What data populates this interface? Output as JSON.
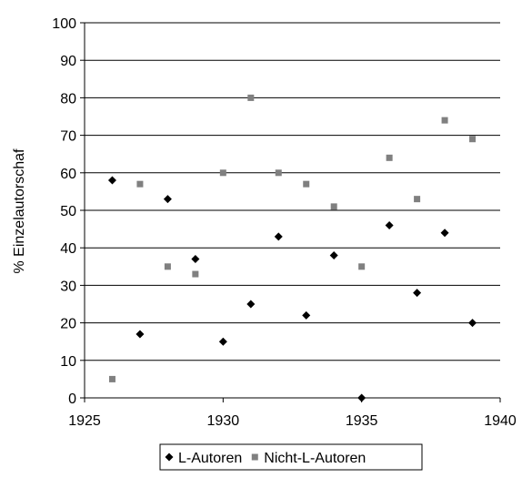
{
  "chart_data": {
    "type": "scatter",
    "title": "",
    "xlabel": "",
    "ylabel": "% Einzelautorschaf",
    "xlim": [
      1925,
      1940
    ],
    "ylim": [
      0,
      100
    ],
    "x_ticks": [
      "1925",
      "1930",
      "1935",
      "1940"
    ],
    "y_ticks": [
      "0",
      "10",
      "20",
      "30",
      "40",
      "50",
      "60",
      "70",
      "80",
      "90",
      "100"
    ],
    "grid": "horizontal",
    "legend_position": "bottom",
    "series": [
      {
        "name": "L-Autoren",
        "marker": "diamond",
        "color": "#000000",
        "points": [
          {
            "x": 1926,
            "y": 58
          },
          {
            "x": 1927,
            "y": 17
          },
          {
            "x": 1928,
            "y": 53
          },
          {
            "x": 1929,
            "y": 37
          },
          {
            "x": 1930,
            "y": 15
          },
          {
            "x": 1931,
            "y": 25
          },
          {
            "x": 1932,
            "y": 43
          },
          {
            "x": 1933,
            "y": 22
          },
          {
            "x": 1934,
            "y": 38
          },
          {
            "x": 1935,
            "y": 0
          },
          {
            "x": 1936,
            "y": 46
          },
          {
            "x": 1937,
            "y": 28
          },
          {
            "x": 1938,
            "y": 44
          },
          {
            "x": 1939,
            "y": 20
          }
        ]
      },
      {
        "name": "Nicht-L-Autoren",
        "marker": "square",
        "color": "#808080",
        "points": [
          {
            "x": 1926,
            "y": 5
          },
          {
            "x": 1927,
            "y": 57
          },
          {
            "x": 1928,
            "y": 35
          },
          {
            "x": 1929,
            "y": 33
          },
          {
            "x": 1930,
            "y": 60
          },
          {
            "x": 1931,
            "y": 80
          },
          {
            "x": 1932,
            "y": 60
          },
          {
            "x": 1933,
            "y": 57
          },
          {
            "x": 1934,
            "y": 51
          },
          {
            "x": 1935,
            "y": 35
          },
          {
            "x": 1936,
            "y": 64
          },
          {
            "x": 1937,
            "y": 53
          },
          {
            "x": 1938,
            "y": 74
          },
          {
            "x": 1939,
            "y": 69
          }
        ]
      }
    ]
  }
}
